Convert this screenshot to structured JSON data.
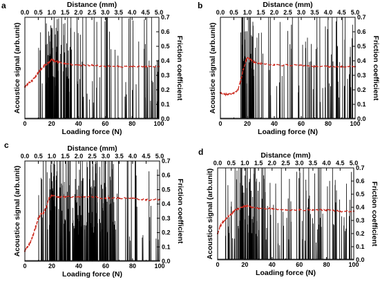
{
  "chart_data": [
    {
      "type": "line",
      "panel_label": "a",
      "xlabel": "Loading force (N)",
      "x2label": "Distance (mm)",
      "ylabel": "Acoustice signal (arb.unit)",
      "y2label": "Friction coefficient",
      "xlim": [
        0,
        100
      ],
      "x2lim": [
        0.0,
        5.0
      ],
      "y2lim": [
        0.0,
        0.7
      ],
      "x_ticks": [
        "0",
        "20",
        "40",
        "60",
        "80",
        "100"
      ],
      "x2_ticks": [
        "0.0",
        "0.5",
        "1.0",
        "1.5",
        "2.0",
        "2.5",
        "3.0",
        "3.5",
        "4.0",
        "4.5",
        "5.0"
      ],
      "y2_ticks": [
        "0.0",
        "0.1",
        "0.2",
        "0.3",
        "0.4",
        "0.5",
        "0.6",
        "0.7"
      ],
      "series": [
        {
          "type": "acoustic",
          "color": "#000000",
          "onset_force": 10,
          "dense_range": [
            15,
            35
          ],
          "clipped_to_top": true
        },
        {
          "type": "friction",
          "color": "#cc2a1f",
          "axis": "right",
          "x": [
            0,
            2,
            5,
            8,
            10,
            12,
            15,
            18,
            20,
            22,
            25,
            30,
            40,
            50,
            60,
            70,
            80,
            90,
            100
          ],
          "values": [
            0.22,
            0.24,
            0.26,
            0.29,
            0.32,
            0.34,
            0.37,
            0.39,
            0.41,
            0.4,
            0.39,
            0.38,
            0.37,
            0.37,
            0.36,
            0.36,
            0.36,
            0.36,
            0.36
          ]
        }
      ]
    },
    {
      "type": "line",
      "panel_label": "b",
      "xlabel": "Loading force (N)",
      "x2label": "Distance (mm)",
      "ylabel": "Acoustice signal (arb.unit)",
      "y2label": "Friction coefficient",
      "xlim": [
        0,
        100
      ],
      "x2lim": [
        0.0,
        5.0
      ],
      "y2lim": [
        0.0,
        0.7
      ],
      "x_ticks": [
        "0",
        "20",
        "40",
        "60",
        "80",
        "100"
      ],
      "x2_ticks": [
        "0.0",
        "0.5",
        "1.0",
        "1.5",
        "2.0",
        "2.5",
        "3.0",
        "3.5",
        "4.0",
        "4.5",
        "5.0"
      ],
      "y2_ticks": [
        "0.0",
        "0.1",
        "0.2",
        "0.3",
        "0.4",
        "0.5",
        "0.6",
        "0.7"
      ],
      "series": [
        {
          "type": "acoustic",
          "color": "#000000",
          "onset_force": 15,
          "dense_range": [
            15,
            25
          ],
          "clipped_to_top": true
        },
        {
          "type": "friction",
          "color": "#cc2a1f",
          "axis": "right",
          "x": [
            0,
            3,
            6,
            10,
            13,
            15,
            17,
            19,
            20,
            22,
            25,
            30,
            40,
            50,
            60,
            70,
            80,
            90,
            100
          ],
          "values": [
            0.18,
            0.17,
            0.17,
            0.18,
            0.2,
            0.26,
            0.34,
            0.4,
            0.42,
            0.41,
            0.39,
            0.38,
            0.37,
            0.37,
            0.37,
            0.36,
            0.36,
            0.36,
            0.36
          ]
        }
      ]
    },
    {
      "type": "line",
      "panel_label": "c",
      "xlabel": "Loading force (N)",
      "x2label": "Distance (mm)",
      "ylabel": "Acoustice signal (arb.unit)",
      "y2label": "Friction coefficient",
      "xlim": [
        0,
        100
      ],
      "x2lim": [
        0.0,
        5.0
      ],
      "y2lim": [
        0.0,
        0.7
      ],
      "x_ticks": [
        "0",
        "20",
        "40",
        "60",
        "80",
        "100"
      ],
      "x2_ticks": [
        "0.0",
        "0.5",
        "1.0",
        "1.5",
        "2.0",
        "2.5",
        "3.0",
        "3.5",
        "4.0",
        "4.5",
        "5.0"
      ],
      "y2_ticks": [
        "0.0",
        "0.1",
        "0.2",
        "0.3",
        "0.4",
        "0.5",
        "0.6",
        "0.7"
      ],
      "series": [
        {
          "type": "acoustic",
          "color": "#000000",
          "onset_force": 10,
          "dense_range": [
            18,
            70
          ],
          "clipped_to_top": true
        },
        {
          "type": "friction",
          "color": "#cc2a1f",
          "axis": "right",
          "x": [
            0,
            2,
            4,
            6,
            8,
            10,
            12,
            14,
            16,
            18,
            20,
            25,
            30,
            40,
            50,
            60,
            70,
            80,
            90,
            100
          ],
          "values": [
            0.07,
            0.1,
            0.13,
            0.18,
            0.24,
            0.3,
            0.33,
            0.34,
            0.38,
            0.44,
            0.46,
            0.45,
            0.45,
            0.45,
            0.45,
            0.44,
            0.44,
            0.44,
            0.43,
            0.43
          ]
        }
      ]
    },
    {
      "type": "line",
      "panel_label": "d",
      "xlabel": "Loading force (N)",
      "x2label": "Distance (mm)",
      "ylabel": "Acoustice signal (arb.unit)",
      "y2label": "Friction coefficient",
      "xlim": [
        0,
        100
      ],
      "x2lim": [
        0.0,
        5.0
      ],
      "y2lim": [
        0.0,
        0.7
      ],
      "x_ticks": [
        "0",
        "20",
        "40",
        "60",
        "80",
        "100"
      ],
      "x2_ticks": [
        "0.0",
        "0.5",
        "1.0",
        "1.5",
        "2.0",
        "2.5",
        "3.0",
        "3.5",
        "4.0",
        "4.5",
        "5.0"
      ],
      "y2_ticks": [
        "0.0",
        "0.1",
        "0.2",
        "0.3",
        "0.4",
        "0.5",
        "0.6",
        "0.7"
      ],
      "series": [
        {
          "type": "acoustic",
          "color": "#000000",
          "onset_force": 5,
          "dense_range": [
            15,
            30
          ],
          "clipped_to_top": true
        },
        {
          "type": "friction",
          "color": "#cc2a1f",
          "axis": "right",
          "x": [
            0,
            2,
            4,
            6,
            8,
            10,
            12,
            15,
            18,
            20,
            22,
            25,
            30,
            40,
            50,
            60,
            70,
            80,
            90,
            100
          ],
          "values": [
            0.2,
            0.26,
            0.29,
            0.31,
            0.33,
            0.35,
            0.37,
            0.39,
            0.4,
            0.41,
            0.41,
            0.4,
            0.39,
            0.39,
            0.38,
            0.38,
            0.38,
            0.38,
            0.37,
            0.37
          ]
        }
      ]
    }
  ]
}
